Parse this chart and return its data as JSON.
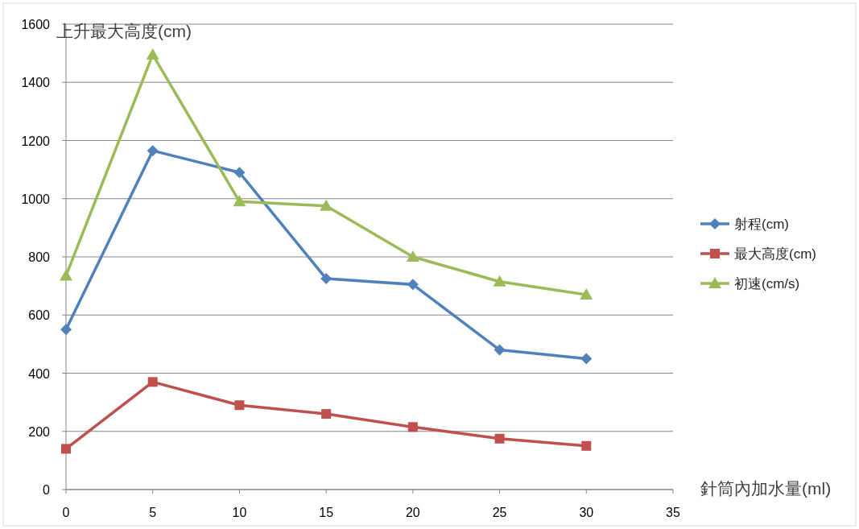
{
  "chart_data": {
    "type": "line",
    "xlabel": "針筒內加水量(ml)",
    "ylabel": "上升最大高度(cm)",
    "x": [
      0,
      5,
      10,
      15,
      20,
      25,
      30
    ],
    "xlim": [
      0,
      35
    ],
    "xticks": [
      0,
      5,
      10,
      15,
      20,
      25,
      30,
      35
    ],
    "ylim": [
      0,
      1600
    ],
    "yticks": [
      0,
      200,
      400,
      600,
      800,
      1000,
      1200,
      1400,
      1600
    ],
    "grid": "y",
    "legend": "right",
    "series": [
      {
        "name": "射程(cm)",
        "color": "#4f81bd",
        "marker": "diamond",
        "values": [
          550,
          1165,
          1090,
          725,
          705,
          480,
          450
        ]
      },
      {
        "name": "最大高度(cm)",
        "color": "#c0504d",
        "marker": "square",
        "values": [
          140,
          370,
          290,
          260,
          215,
          175,
          150
        ]
      },
      {
        "name": "初速(cm/s)",
        "color": "#9bbb59",
        "marker": "triangle",
        "values": [
          735,
          1495,
          990,
          975,
          800,
          715,
          670
        ]
      }
    ]
  }
}
